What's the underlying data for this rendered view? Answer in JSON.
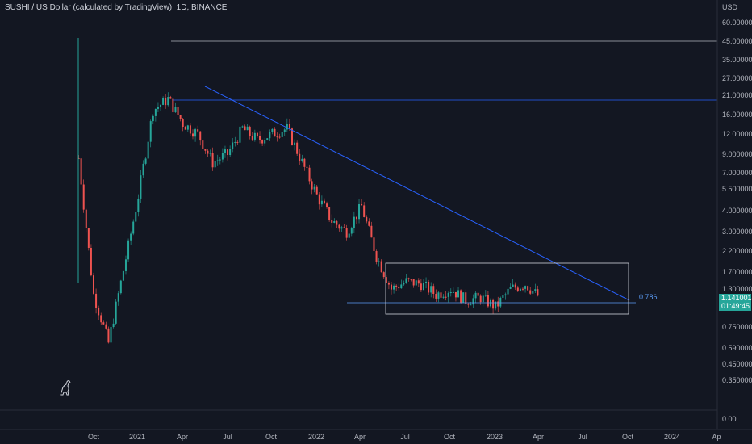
{
  "header": {
    "title": "SUSHI / US Dollar (calculated by TradingView), 1D, BINANCE"
  },
  "price_badge": {
    "price": "1.1410018",
    "countdown": "01:49:45"
  },
  "colors": {
    "background": "#131722",
    "up": "#26a69a",
    "down": "#ef5350",
    "trendline": "#2962ff",
    "box": "#d1d4dc"
  },
  "icons": {
    "logo": "tradingview-dino-icon"
  },
  "chart_data": {
    "type": "candlestick",
    "y_scale": "log",
    "y_unit_label": "USD",
    "y_ticks": [
      "60.0000000",
      "45.0000000",
      "35.0000000",
      "27.0000000",
      "21.0000000",
      "16.0000000",
      "12.0000000",
      "9.0000000",
      "7.0000000",
      "5.5000000",
      "4.0000000",
      "3.0000000",
      "2.2000000",
      "1.7000000",
      "1.3000000",
      "0.7500000",
      "0.5900000",
      "0.4500000",
      "0.3500000",
      "0.00"
    ],
    "x_ticks": [
      "Oct",
      "2021",
      "Apr",
      "Jul",
      "Oct",
      "2022",
      "Apr",
      "Jul",
      "Oct",
      "2023",
      "Apr",
      "Jul",
      "Oct",
      "2024",
      "Ap"
    ],
    "annotations": [
      {
        "text": "0.786"
      }
    ],
    "horizontal_levels": [
      45.0,
      19.5,
      1.14
    ],
    "range_box": {
      "x_start": "2022-06",
      "x_end": "2023-10",
      "y_low": 0.93,
      "y_high": 1.9
    },
    "trendline": {
      "from": [
        "2021-05",
        23.5
      ],
      "to": [
        "2023-10",
        1.15
      ]
    },
    "series": [
      {
        "x": [
          "2020-09",
          "2020-10",
          "2020-11",
          "2020-12",
          "2021-01",
          "2021-02",
          "2021-03",
          "2021-04",
          "2021-05",
          "2021-06",
          "2021-07",
          "2021-08",
          "2021-09",
          "2021-10",
          "2021-11",
          "2021-12",
          "2022-01",
          "2022-02",
          "2022-03",
          "2022-04",
          "2022-05",
          "2022-06",
          "2022-07",
          "2022-08",
          "2022-09",
          "2022-10",
          "2022-11",
          "2022-12",
          "2023-01",
          "2023-02",
          "2023-03",
          "2023-04"
        ],
        "close": [
          8.5,
          1.2,
          0.6,
          1.7,
          5.0,
          17.0,
          20.0,
          14.0,
          12.0,
          8.0,
          9.0,
          13.0,
          11.0,
          12.0,
          13.0,
          8.0,
          5.0,
          3.5,
          3.0,
          4.3,
          2.1,
          1.3,
          1.45,
          1.4,
          1.2,
          1.3,
          1.1,
          1.15,
          1.0,
          1.3,
          1.4,
          1.14
        ]
      }
    ]
  }
}
